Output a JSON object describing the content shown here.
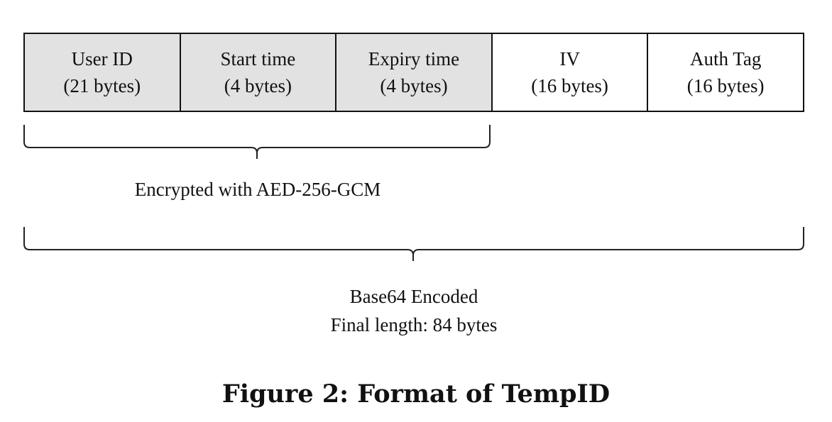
{
  "fields": [
    {
      "name": "User ID",
      "size": "(21 bytes)",
      "shaded": true
    },
    {
      "name": "Start time",
      "size": "(4 bytes)",
      "shaded": true
    },
    {
      "name": "Expiry time",
      "size": "(4 bytes)",
      "shaded": true
    },
    {
      "name": "IV",
      "size": "(16 bytes)",
      "shaded": false
    },
    {
      "name": "Auth Tag",
      "size": "(16 bytes)",
      "shaded": false
    }
  ],
  "encrypted_label": "Encrypted with AED-256-GCM",
  "encoded_label": {
    "line1": "Base64 Encoded",
    "line2": "Final length: 84 bytes"
  },
  "caption": "Figure 2: Format of TempID",
  "colors": {
    "shaded_fill": "#e2e2e2",
    "stroke": "#111111"
  }
}
